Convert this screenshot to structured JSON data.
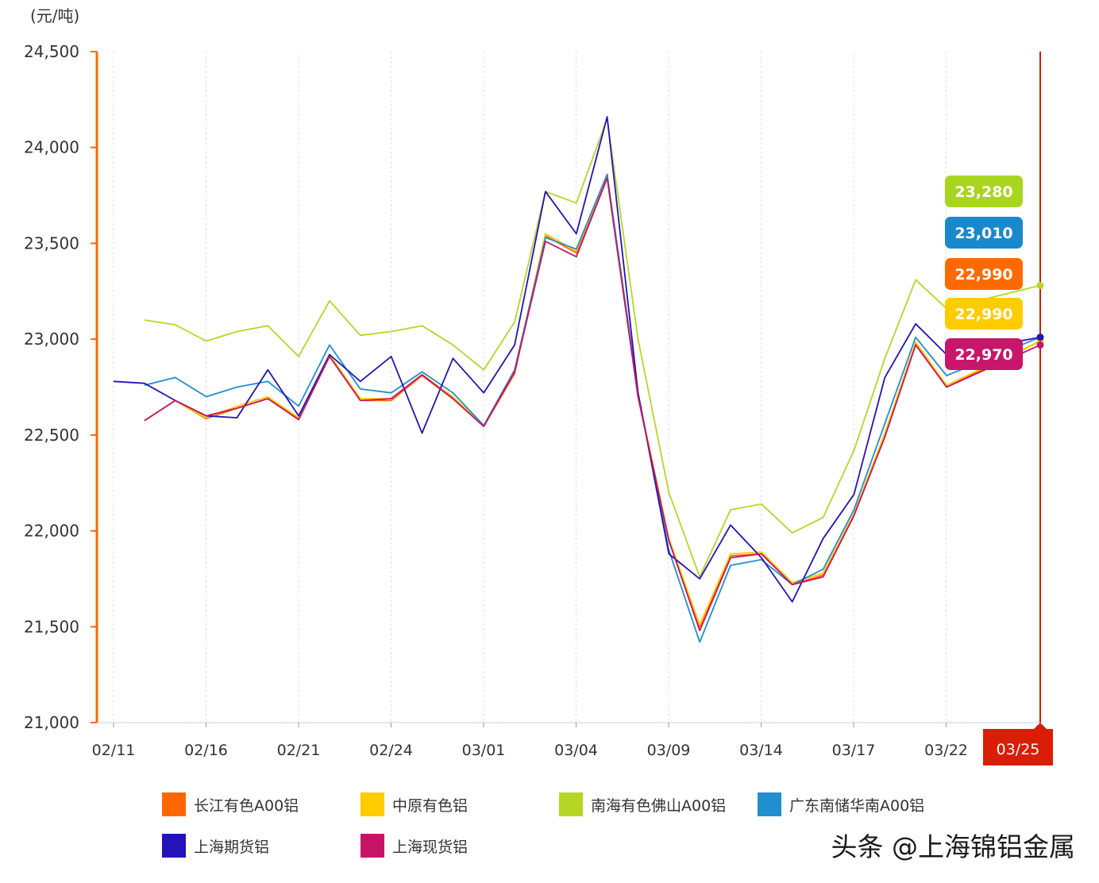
{
  "chart_data": {
    "type": "line",
    "ylabel": "(元/吨)",
    "ylim": [
      21000,
      24500
    ],
    "y_ticks": [
      "24,500",
      "24,000",
      "23,500",
      "23,000",
      "22,500",
      "22,000",
      "21,500",
      "21,000"
    ],
    "y_tick_values": [
      24500,
      24000,
      23500,
      23000,
      22500,
      22000,
      21500,
      21000
    ],
    "x_ticks": [
      "02/11",
      "02/16",
      "02/21",
      "02/24",
      "03/01",
      "03/04",
      "03/09",
      "03/14",
      "03/17",
      "03/22"
    ],
    "highlight_date": "03/25",
    "axis_color": "#ff6600",
    "marker_color": "#d81e06",
    "series": [
      {
        "name": "长江有色A00铝",
        "color": "#ff6600",
        "values": [
          null,
          22575,
          22680,
          22585,
          22640,
          22690,
          22585,
          22910,
          22680,
          22680,
          22810,
          22690,
          22545,
          22820,
          23540,
          23450,
          23850,
          22700,
          21950,
          21500,
          21870,
          21880,
          21720,
          21770,
          22080,
          22500,
          22980,
          22750,
          22990,
          22990
        ]
      },
      {
        "name": "中原有色铝",
        "color": "#ffcc00",
        "values": [
          null,
          22575,
          22680,
          22590,
          22650,
          22700,
          22590,
          22920,
          22690,
          22690,
          22815,
          22700,
          22550,
          22830,
          23550,
          23460,
          23860,
          22710,
          21960,
          21510,
          21880,
          21890,
          21730,
          21780,
          22090,
          22510,
          22985,
          22760,
          22990,
          22990
        ]
      },
      {
        "name": "南海有色佛山A00铝",
        "color": "#b5d626",
        "values": [
          null,
          23100,
          23075,
          22990,
          23040,
          23070,
          22910,
          23200,
          23020,
          23040,
          23070,
          22970,
          22840,
          23090,
          23770,
          23710,
          24150,
          23000,
          22200,
          21760,
          22110,
          22140,
          21990,
          22070,
          22420,
          22900,
          23310,
          23160,
          23280,
          23280
        ]
      },
      {
        "name": "广东南储华南A00铝",
        "color": "#1f8fd0",
        "values": [
          null,
          22760,
          22800,
          22700,
          22750,
          22780,
          22650,
          22970,
          22740,
          22720,
          22830,
          22720,
          22550,
          22840,
          23530,
          23470,
          23860,
          22720,
          21900,
          21420,
          21820,
          21850,
          21720,
          21800,
          22110,
          22560,
          23010,
          22810,
          23010,
          23010
        ]
      },
      {
        "name": "上海期货铝",
        "color": "#2413b8",
        "values": [
          22780,
          22770,
          22680,
          22600,
          22590,
          22840,
          22600,
          22920,
          22780,
          22910,
          22510,
          22900,
          22720,
          22970,
          23770,
          23550,
          24160,
          22720,
          21880,
          21750,
          22030,
          21860,
          21630,
          21960,
          22190,
          22800,
          23080,
          22920,
          23010,
          23010
        ]
      },
      {
        "name": "上海现货铝",
        "color": "#c71466",
        "values": [
          null,
          22575,
          22680,
          22600,
          22640,
          22690,
          22580,
          22910,
          22680,
          22690,
          22815,
          22690,
          22545,
          22830,
          23510,
          23430,
          23840,
          22700,
          21950,
          21480,
          21860,
          21880,
          21720,
          21760,
          22080,
          22490,
          22970,
          22750,
          22970,
          22970
        ]
      }
    ],
    "end_labels": [
      {
        "text": "23,280",
        "color": "#a8d51e",
        "series": "南海有色佛山A00铝"
      },
      {
        "text": "23,010",
        "color": "#1a88cc",
        "series": "广东南储华南A00铝"
      },
      {
        "text": "22,990",
        "color": "#ff6a00",
        "series": "长江有色A00铝"
      },
      {
        "text": "22,990",
        "color": "#ffcc00",
        "series": "中原有色铝"
      },
      {
        "text": "22,970",
        "color": "#c8166a",
        "series": "上海现货铝"
      }
    ]
  },
  "legend": {
    "items": [
      {
        "label": "长江有色A00铝",
        "color": "#ff6600"
      },
      {
        "label": "中原有色铝",
        "color": "#ffcc00"
      },
      {
        "label": "南海有色佛山A00铝",
        "color": "#b5d626"
      },
      {
        "label": "广东南储华南A00铝",
        "color": "#1f8fd0"
      },
      {
        "label": "上海期货铝",
        "color": "#2413b8"
      },
      {
        "label": "上海现货铝",
        "color": "#c71466"
      }
    ]
  },
  "watermark": "头条 @上海锦铝金属"
}
